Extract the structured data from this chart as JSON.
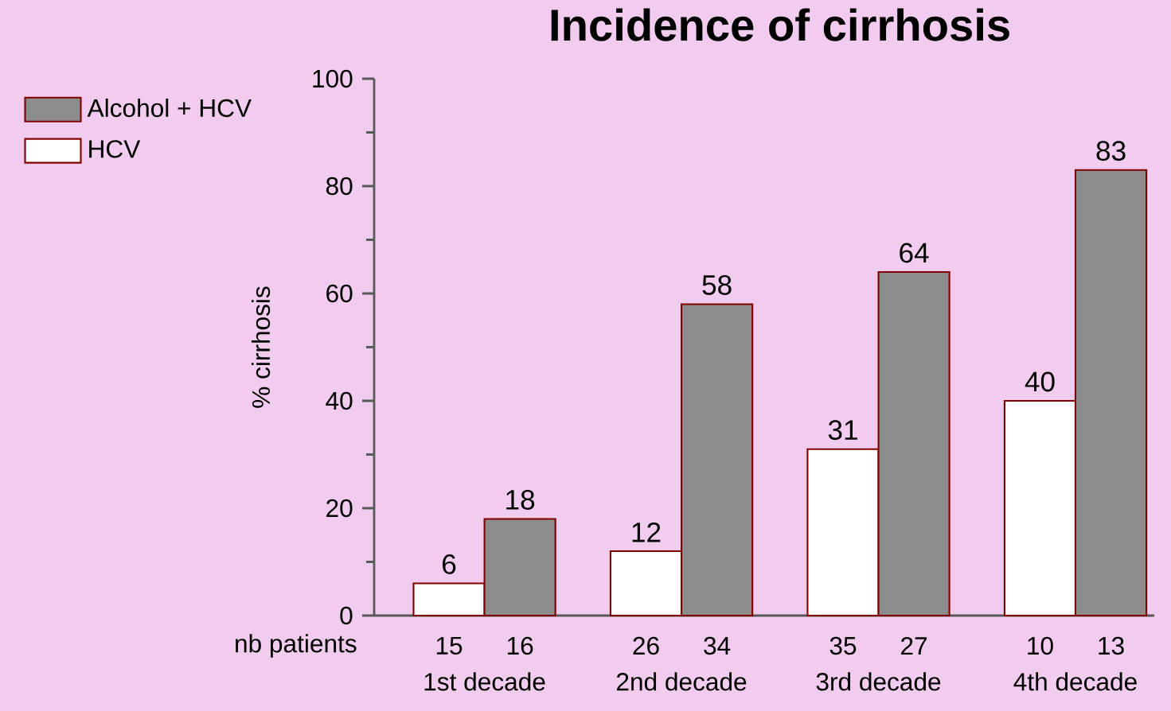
{
  "chart_data": {
    "type": "bar",
    "title": "Incidence of cirrhosis",
    "ylabel": "% cirrhosis",
    "categories": [
      "1st decade",
      "2nd decade",
      "3rd decade",
      "4th decade"
    ],
    "series": [
      {
        "name": "HCV",
        "color": "#ffffff",
        "values": [
          6,
          12,
          31,
          40
        ]
      },
      {
        "name": "Alcohol + HCV",
        "color": "#8c8c8c",
        "values": [
          18,
          58,
          64,
          83
        ]
      }
    ],
    "ylim": [
      0,
      100
    ],
    "yticks": [
      0,
      20,
      40,
      60,
      80,
      100
    ],
    "data_labels": true,
    "legend": "top left",
    "annotations": [
      "nb patients",
      "15",
      "16",
      "26",
      "34",
      "35",
      "27",
      "10",
      "13"
    ]
  }
}
